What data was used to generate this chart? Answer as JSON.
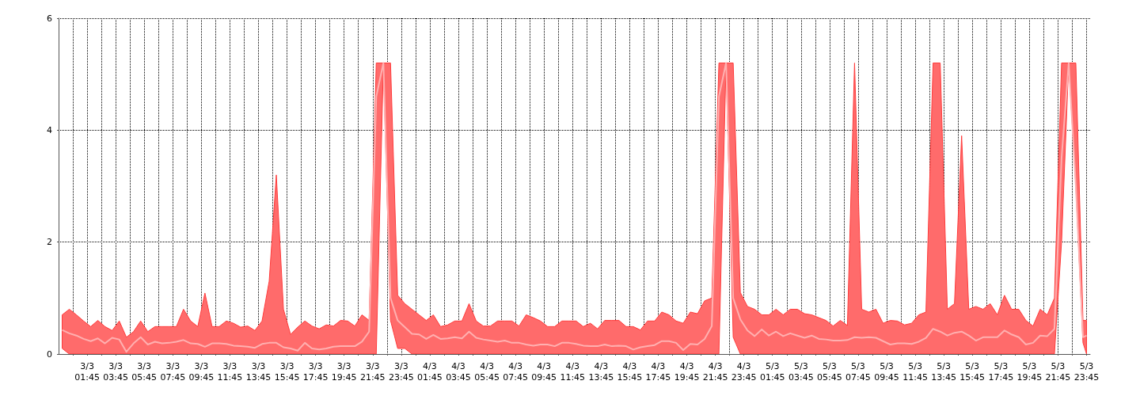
{
  "chart_data": {
    "type": "line",
    "x": [
      "--03-03T00:00",
      "--03-03T00:30",
      "--03-03T01:00",
      "--03-03T01:30",
      "--03-03T02:00",
      "--03-03T02:30",
      "--03-03T03:00",
      "--03-03T03:30",
      "--03-03T04:00",
      "--03-03T04:30",
      "--03-03T05:00",
      "--03-03T05:30",
      "--03-03T06:00",
      "--03-03T06:30",
      "--03-03T07:00",
      "--03-03T07:30",
      "--03-03T08:00",
      "--03-03T08:30",
      "--03-03T09:00",
      "--03-03T09:30",
      "--03-03T10:00",
      "--03-03T10:30",
      "--03-03T11:00",
      "--03-03T11:30",
      "--03-03T12:00",
      "--03-03T12:30",
      "--03-03T13:00",
      "--03-03T13:30",
      "--03-03T14:00",
      "--03-03T14:30",
      "--03-03T15:00",
      "--03-03T15:30",
      "--03-03T16:00",
      "--03-03T16:30",
      "--03-03T17:00",
      "--03-03T17:30",
      "--03-03T18:00",
      "--03-03T18:30",
      "--03-03T19:00",
      "--03-03T19:30",
      "--03-03T20:00",
      "--03-03T20:30",
      "--03-03T21:00",
      "--03-03T21:30",
      "--03-03T22:00",
      "--03-03T22:30",
      "--03-03T23:00",
      "--03-03T23:30",
      "--03-04T00:00",
      "--03-04T00:30",
      "--03-04T01:00",
      "--03-04T01:30",
      "--03-04T02:00",
      "--03-04T02:30",
      "--03-04T03:00",
      "--03-04T03:30",
      "--03-04T04:00",
      "--03-04T04:30",
      "--03-04T05:00",
      "--03-04T05:30",
      "--03-04T06:00",
      "--03-04T06:30",
      "--03-04T07:00",
      "--03-04T07:30",
      "--03-04T08:00",
      "--03-04T08:30",
      "--03-04T09:00",
      "--03-04T09:30",
      "--03-04T10:00",
      "--03-04T10:30",
      "--03-04T11:00",
      "--03-04T11:30",
      "--03-04T12:00",
      "--03-04T12:30",
      "--03-04T13:00",
      "--03-04T13:30",
      "--03-04T14:00",
      "--03-04T14:30",
      "--03-04T15:00",
      "--03-04T15:30",
      "--03-04T16:00",
      "--03-04T16:30",
      "--03-04T17:00",
      "--03-04T17:30",
      "--03-04T18:00",
      "--03-04T18:30",
      "--03-04T19:00",
      "--03-04T19:30",
      "--03-04T20:00",
      "--03-04T20:30",
      "--03-04T21:00",
      "--03-04T21:30",
      "--03-04T22:00",
      "--03-04T22:30",
      "--03-04T23:00",
      "--03-04T23:30",
      "--03-05T00:00",
      "--03-05T00:30",
      "--03-05T01:00",
      "--03-05T01:30",
      "--03-05T02:00",
      "--03-05T02:30",
      "--03-05T03:00",
      "--03-05T03:30",
      "--03-05T04:00",
      "--03-05T04:30",
      "--03-05T05:00",
      "--03-05T05:30",
      "--03-05T06:00",
      "--03-05T06:30",
      "--03-05T07:00",
      "--03-05T07:30",
      "--03-05T08:00",
      "--03-05T08:30",
      "--03-05T09:00",
      "--03-05T09:30",
      "--03-05T10:00",
      "--03-05T10:30",
      "--03-05T11:00",
      "--03-05T11:30",
      "--03-05T12:00",
      "--03-05T12:30",
      "--03-05T13:00",
      "--03-05T13:30",
      "--03-05T14:00",
      "--03-05T14:30",
      "--03-05T15:00",
      "--03-05T15:30",
      "--03-05T16:00",
      "--03-05T16:30",
      "--03-05T17:00",
      "--03-05T17:30",
      "--03-05T18:00",
      "--03-05T18:30",
      "--03-05T19:00",
      "--03-05T19:30",
      "--03-05T20:00",
      "--03-05T20:30",
      "--03-05T21:00",
      "--03-05T21:30",
      "--03-05T22:00",
      "--03-05T22:30",
      "--03-05T23:00",
      "--03-05T23:30",
      "--03-05T23:45"
    ],
    "series": [
      {
        "color": "#ffb0b0",
        "values": [
          0.43,
          0.37,
          0.33,
          0.27,
          0.23,
          0.28,
          0.19,
          0.29,
          0.26,
          0.04,
          0.19,
          0.3,
          0.17,
          0.22,
          0.19,
          0.2,
          0.22,
          0.25,
          0.19,
          0.18,
          0.13,
          0.19,
          0.19,
          0.18,
          0.15,
          0.14,
          0.13,
          0.11,
          0.18,
          0.2,
          0.2,
          0.12,
          0.1,
          0.06,
          0.2,
          0.1,
          0.08,
          0.1,
          0.13,
          0.14,
          0.14,
          0.14,
          0.22,
          0.4,
          4.6,
          5.2,
          1.0,
          0.6,
          0.48,
          0.36,
          0.35,
          0.27,
          0.34,
          0.27,
          0.28,
          0.3,
          0.28,
          0.4,
          0.29,
          0.26,
          0.24,
          0.22,
          0.24,
          0.2,
          0.2,
          0.17,
          0.15,
          0.17,
          0.17,
          0.14,
          0.2,
          0.2,
          0.18,
          0.15,
          0.14,
          0.14,
          0.17,
          0.14,
          0.15,
          0.14,
          0.08,
          0.12,
          0.14,
          0.16,
          0.23,
          0.23,
          0.2,
          0.07,
          0.18,
          0.17,
          0.27,
          0.5,
          4.6,
          5.2,
          1.0,
          0.62,
          0.42,
          0.32,
          0.44,
          0.33,
          0.4,
          0.32,
          0.37,
          0.33,
          0.29,
          0.33,
          0.27,
          0.26,
          0.24,
          0.24,
          0.25,
          0.3,
          0.29,
          0.3,
          0.29,
          0.23,
          0.17,
          0.19,
          0.19,
          0.18,
          0.22,
          0.29,
          0.45,
          0.4,
          0.33,
          0.38,
          0.4,
          0.33,
          0.24,
          0.3,
          0.3,
          0.3,
          0.42,
          0.35,
          0.3,
          0.17,
          0.2,
          0.33,
          0.32,
          0.45,
          3.5,
          5.2,
          3.0,
          0.3,
          0.33
        ],
        "upper": [
          0.7,
          0.8,
          0.7,
          0.59,
          0.49,
          0.6,
          0.49,
          0.42,
          0.59,
          0.3,
          0.4,
          0.59,
          0.4,
          0.49,
          0.49,
          0.49,
          0.49,
          0.8,
          0.59,
          0.49,
          1.09,
          0.49,
          0.49,
          0.59,
          0.55,
          0.48,
          0.5,
          0.42,
          0.59,
          1.3,
          3.2,
          0.8,
          0.35,
          0.48,
          0.59,
          0.5,
          0.45,
          0.52,
          0.5,
          0.6,
          0.59,
          0.5,
          0.7,
          0.6,
          5.2,
          5.2,
          5.2,
          1.05,
          0.9,
          0.8,
          0.7,
          0.6,
          0.7,
          0.49,
          0.52,
          0.59,
          0.59,
          0.9,
          0.59,
          0.5,
          0.5,
          0.59,
          0.59,
          0.59,
          0.5,
          0.7,
          0.65,
          0.59,
          0.49,
          0.49,
          0.59,
          0.59,
          0.59,
          0.49,
          0.55,
          0.45,
          0.6,
          0.6,
          0.6,
          0.49,
          0.49,
          0.43,
          0.59,
          0.59,
          0.75,
          0.7,
          0.59,
          0.55,
          0.75,
          0.72,
          0.95,
          1.0,
          5.2,
          5.2,
          5.2,
          1.1,
          0.85,
          0.8,
          0.7,
          0.7,
          0.8,
          0.7,
          0.8,
          0.8,
          0.72,
          0.7,
          0.65,
          0.6,
          0.5,
          0.6,
          0.51,
          5.2,
          0.8,
          0.75,
          0.8,
          0.55,
          0.6,
          0.59,
          0.52,
          0.55,
          0.7,
          0.75,
          5.2,
          5.2,
          0.8,
          0.9,
          3.9,
          0.8,
          0.85,
          0.8,
          0.9,
          0.7,
          1.05,
          0.8,
          0.8,
          0.6,
          0.5,
          0.8,
          0.7,
          1.0,
          5.2,
          5.2,
          5.2,
          0.6,
          0.6
        ],
        "lower": [
          0.1,
          0,
          0,
          0,
          0,
          0,
          0,
          0,
          0,
          0,
          0,
          0,
          0,
          0,
          0,
          0,
          0,
          0,
          0,
          0,
          0,
          0,
          0,
          0,
          0,
          0,
          0,
          0,
          0,
          0,
          0,
          0,
          0,
          0,
          0,
          0,
          0,
          0,
          0,
          0,
          0,
          0,
          0,
          0,
          0,
          5.2,
          0.6,
          0.1,
          0.1,
          0,
          0,
          0,
          0,
          0,
          0,
          0,
          0,
          0,
          0,
          0,
          0,
          0,
          0,
          0,
          0,
          0,
          0,
          0,
          0,
          0,
          0,
          0,
          0,
          0,
          0,
          0,
          0,
          0,
          0,
          0,
          0,
          0,
          0,
          0,
          0,
          0,
          0,
          0,
          0,
          0,
          0,
          0,
          0,
          5.2,
          0.3,
          0,
          0,
          0,
          0,
          0,
          0,
          0,
          0,
          0,
          0,
          0,
          0,
          0,
          0,
          0,
          0,
          0,
          0,
          0,
          0,
          0,
          0,
          0,
          0,
          0,
          0,
          0,
          0,
          0,
          0,
          0,
          0,
          0,
          0,
          0,
          0,
          0,
          0,
          0,
          0,
          0,
          0,
          0,
          0,
          0,
          2,
          5.2,
          3.0,
          0.2,
          0
        ]
      }
    ],
    "xlim": [
      "--03-02T23:45",
      "--03-06T00:00"
    ],
    "xticks": [
      {
        "value": "--03-03T00:45",
        "label": null
      },
      {
        "value": "--03-03T01:45",
        "label": "3/3\n01:45"
      },
      {
        "value": "--03-03T02:45",
        "label": null
      },
      {
        "value": "--03-03T03:45",
        "label": "3/3\n03:45"
      },
      {
        "value": "--03-03T04:45",
        "label": null
      },
      {
        "value": "--03-03T05:45",
        "label": "3/3\n05:45"
      },
      {
        "value": "--03-03T06:45",
        "label": null
      },
      {
        "value": "--03-03T07:45",
        "label": "3/3\n07:45"
      },
      {
        "value": "--03-03T08:45",
        "label": null
      },
      {
        "value": "--03-03T09:45",
        "label": "3/3\n09:45"
      },
      {
        "value": "--03-03T10:45",
        "label": null
      },
      {
        "value": "--03-03T11:45",
        "label": "3/3\n11:45"
      },
      {
        "value": "--03-03T12:45",
        "label": null
      },
      {
        "value": "--03-03T13:45",
        "label": "3/3\n13:45"
      },
      {
        "value": "--03-03T14:45",
        "label": null
      },
      {
        "value": "--03-03T15:45",
        "label": "3/3\n15:45"
      },
      {
        "value": "--03-03T16:45",
        "label": null
      },
      {
        "value": "--03-03T17:45",
        "label": "3/3\n17:45"
      },
      {
        "value": "--03-03T18:45",
        "label": null
      },
      {
        "value": "--03-03T19:45",
        "label": "3/3\n19:45"
      },
      {
        "value": "--03-03T20:45",
        "label": null
      },
      {
        "value": "--03-03T21:45",
        "label": "3/3\n21:45"
      },
      {
        "value": "--03-03T22:45",
        "label": null
      },
      {
        "value": "--03-03T23:45",
        "label": "3/3\n23:45"
      },
      {
        "value": "--03-04T00:45",
        "label": null
      },
      {
        "value": "--03-04T01:45",
        "label": "4/3\n01:45"
      },
      {
        "value": "--03-04T02:45",
        "label": null
      },
      {
        "value": "--03-04T03:45",
        "label": "4/3\n03:45"
      },
      {
        "value": "--03-04T04:45",
        "label": null
      },
      {
        "value": "--03-04T05:45",
        "label": "4/3\n05:45"
      },
      {
        "value": "--03-04T06:45",
        "label": null
      },
      {
        "value": "--03-04T07:45",
        "label": "4/3\n07:45"
      },
      {
        "value": "--03-04T08:45",
        "label": null
      },
      {
        "value": "--03-04T09:45",
        "label": "4/3\n09:45"
      },
      {
        "value": "--03-04T10:45",
        "label": null
      },
      {
        "value": "--03-04T11:45",
        "label": "4/3\n11:45"
      },
      {
        "value": "--03-04T12:45",
        "label": null
      },
      {
        "value": "--03-04T13:45",
        "label": "4/3\n13:45"
      },
      {
        "value": "--03-04T14:45",
        "label": null
      },
      {
        "value": "--03-04T15:45",
        "label": "4/3\n15:45"
      },
      {
        "value": "--03-04T16:45",
        "label": null
      },
      {
        "value": "--03-04T17:45",
        "label": "4/3\n17:45"
      },
      {
        "value": "--03-04T18:45",
        "label": null
      },
      {
        "value": "--03-04T19:45",
        "label": "4/3\n19:45"
      },
      {
        "value": "--03-04T20:45",
        "label": null
      },
      {
        "value": "--03-04T21:45",
        "label": "4/3\n21:45"
      },
      {
        "value": "--03-04T22:45",
        "label": null
      },
      {
        "value": "--03-04T23:45",
        "label": "4/3\n23:45"
      },
      {
        "value": "--03-05T00:45",
        "label": null
      },
      {
        "value": "--03-05T01:45",
        "label": "5/3\n01:45"
      },
      {
        "value": "--03-05T02:45",
        "label": null
      },
      {
        "value": "--03-05T03:45",
        "label": "5/3\n03:45"
      },
      {
        "value": "--03-05T04:45",
        "label": null
      },
      {
        "value": "--03-05T05:45",
        "label": "5/3\n05:45"
      },
      {
        "value": "--03-05T06:45",
        "label": null
      },
      {
        "value": "--03-05T07:45",
        "label": "5/3\n07:45"
      },
      {
        "value": "--03-05T08:45",
        "label": null
      },
      {
        "value": "--03-05T09:45",
        "label": "5/3\n09:45"
      },
      {
        "value": "--03-05T10:45",
        "label": null
      },
      {
        "value": "--03-05T11:45",
        "label": "5/3\n11:45"
      },
      {
        "value": "--03-05T12:45",
        "label": null
      },
      {
        "value": "--03-05T13:45",
        "label": "5/3\n13:45"
      },
      {
        "value": "--03-05T14:45",
        "label": null
      },
      {
        "value": "--03-05T15:45",
        "label": "5/3\n15:45"
      },
      {
        "value": "--03-05T16:45",
        "label": null
      },
      {
        "value": "--03-05T17:45",
        "label": "5/3\n17:45"
      },
      {
        "value": "--03-05T18:45",
        "label": null
      },
      {
        "value": "--03-05T19:45",
        "label": "5/3\n19:45"
      },
      {
        "value": "--03-05T20:45",
        "label": null
      },
      {
        "value": "--03-05T21:45",
        "label": "5/3\n21:45"
      },
      {
        "value": "--03-05T22:45",
        "label": null
      },
      {
        "value": "--03-05T23:45",
        "label": "5/3\n23:45"
      }
    ],
    "ylim": [
      0,
      6
    ],
    "yticks": [
      0,
      2,
      4,
      6
    ],
    "grid": true
  }
}
